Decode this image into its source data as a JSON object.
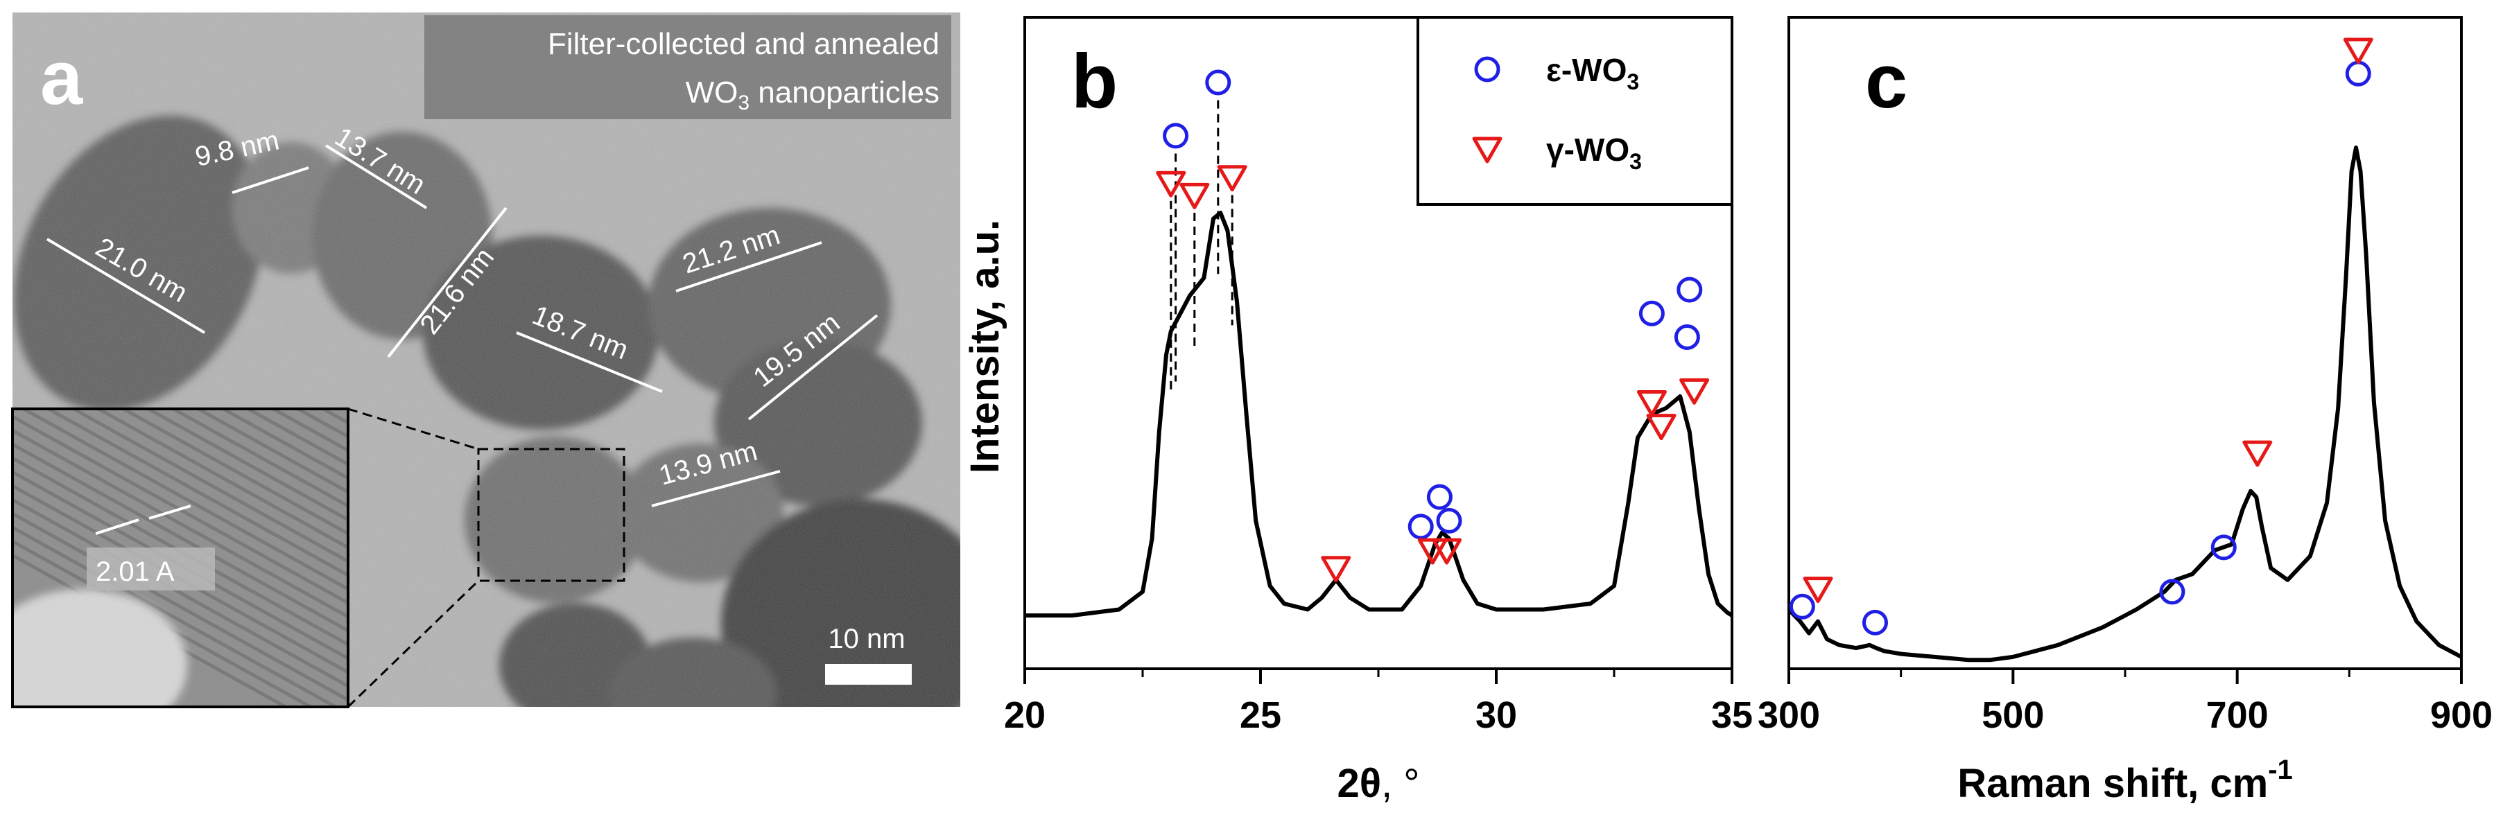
{
  "panel_a": {
    "panel_label": "a",
    "caption_line1": "Filter-collected and annealed",
    "caption_line2_prefix": "WO",
    "caption_line2_sub": "3",
    "caption_line2_suffix": " nanoparticles",
    "size_labels": [
      "9.8 nm",
      "13.7 nm",
      "21.0 nm",
      "21.6 nm",
      "21.2 nm",
      "18.7 nm",
      "19.5 nm",
      "13.9 nm"
    ],
    "inset_label": "2.01 A",
    "scale_bar_label": "10 nm"
  },
  "legend": {
    "epsilon_prefix": "ε-WO",
    "epsilon_sub": "3",
    "gamma_prefix": "γ-WO",
    "gamma_sub": "3"
  },
  "colors": {
    "epsilon": "#1f1fe6",
    "gamma": "#e61919",
    "line": "#000000"
  },
  "chart_data": [
    {
      "panel": "b",
      "type": "line",
      "xlabel_symbol": "2θ",
      "xlabel_unit": ", °",
      "ylabel": "Intensity, a.u.",
      "xlim": [
        20,
        35
      ],
      "ylim": [
        0,
        1.1
      ],
      "xticks": [
        20,
        25,
        30,
        35
      ],
      "xtick_labels": [
        "20",
        "25",
        "30",
        "35"
      ],
      "series": [
        {
          "name": "XRD",
          "x": [
            20.0,
            21.0,
            22.0,
            22.5,
            22.7,
            22.85,
            23.0,
            23.1,
            23.3,
            23.5,
            23.6,
            23.8,
            24.0,
            24.15,
            24.3,
            24.5,
            24.7,
            24.9,
            25.2,
            25.5,
            26.0,
            26.3,
            26.6,
            26.9,
            27.3,
            28.0,
            28.4,
            28.7,
            28.85,
            29.0,
            29.3,
            29.6,
            30.0,
            31.0,
            32.0,
            32.5,
            32.8,
            33.0,
            33.3,
            33.6,
            33.9,
            34.1,
            34.3,
            34.5,
            34.7,
            34.9,
            35.0
          ],
          "y": [
            0.09,
            0.09,
            0.1,
            0.13,
            0.22,
            0.4,
            0.53,
            0.57,
            0.6,
            0.63,
            0.64,
            0.66,
            0.76,
            0.77,
            0.74,
            0.62,
            0.43,
            0.25,
            0.14,
            0.11,
            0.1,
            0.12,
            0.15,
            0.12,
            0.1,
            0.1,
            0.14,
            0.21,
            0.23,
            0.22,
            0.15,
            0.11,
            0.1,
            0.1,
            0.11,
            0.14,
            0.28,
            0.39,
            0.43,
            0.44,
            0.46,
            0.4,
            0.27,
            0.16,
            0.11,
            0.095,
            0.09
          ]
        }
      ],
      "markers": {
        "epsilon": [
          [
            23.2,
            0.9
          ],
          [
            24.1,
            0.99
          ],
          [
            33.3,
            0.6
          ],
          [
            34.1,
            0.64
          ],
          [
            34.05,
            0.56
          ],
          [
            28.4,
            0.24
          ],
          [
            28.8,
            0.29
          ],
          [
            29.0,
            0.25
          ]
        ],
        "gamma": [
          [
            23.1,
            0.82
          ],
          [
            23.6,
            0.8
          ],
          [
            24.4,
            0.83
          ],
          [
            26.6,
            0.17
          ],
          [
            28.65,
            0.2
          ],
          [
            28.95,
            0.2
          ],
          [
            33.3,
            0.45
          ],
          [
            33.5,
            0.41
          ],
          [
            34.2,
            0.47
          ]
        ]
      },
      "dashed_guides": [
        23.1,
        23.2,
        23.6,
        24.1,
        24.4
      ]
    },
    {
      "panel": "c",
      "type": "line",
      "xlabel_main": "Raman shift, cm",
      "xlabel_sup": "-1",
      "ylabel": "",
      "xlim": [
        300,
        900
      ],
      "ylim": [
        0,
        1.1
      ],
      "xticks": [
        300,
        500,
        700,
        900
      ],
      "xtick_labels": [
        "300",
        "500",
        "700",
        "900"
      ],
      "series": [
        {
          "name": "Raman",
          "x": [
            300,
            310,
            318,
            326,
            334,
            345,
            360,
            372,
            378,
            385,
            400,
            430,
            460,
            480,
            500,
            540,
            580,
            610,
            635,
            645,
            660,
            680,
            695,
            705,
            712,
            717,
            722,
            730,
            745,
            765,
            780,
            790,
            797,
            802,
            806,
            810,
            815,
            822,
            832,
            845,
            860,
            880,
            900
          ],
          "y": [
            0.1,
            0.08,
            0.06,
            0.08,
            0.05,
            0.04,
            0.035,
            0.04,
            0.035,
            0.03,
            0.025,
            0.02,
            0.015,
            0.015,
            0.02,
            0.04,
            0.07,
            0.1,
            0.13,
            0.15,
            0.16,
            0.2,
            0.21,
            0.27,
            0.3,
            0.29,
            0.24,
            0.17,
            0.15,
            0.19,
            0.28,
            0.44,
            0.66,
            0.84,
            0.88,
            0.84,
            0.7,
            0.45,
            0.25,
            0.14,
            0.08,
            0.04,
            0.02
          ]
        }
      ],
      "markers": {
        "epsilon": [
          [
            312,
            0.105
          ],
          [
            377,
            0.078
          ],
          [
            642,
            0.13
          ],
          [
            688,
            0.205
          ],
          [
            808,
            1.005
          ]
        ],
        "gamma": [
          [
            326,
            0.135
          ],
          [
            718,
            0.365
          ],
          [
            808,
            1.045
          ]
        ]
      },
      "dashed_guides": []
    }
  ],
  "panel_b_label": "b",
  "panel_c_label": "c"
}
